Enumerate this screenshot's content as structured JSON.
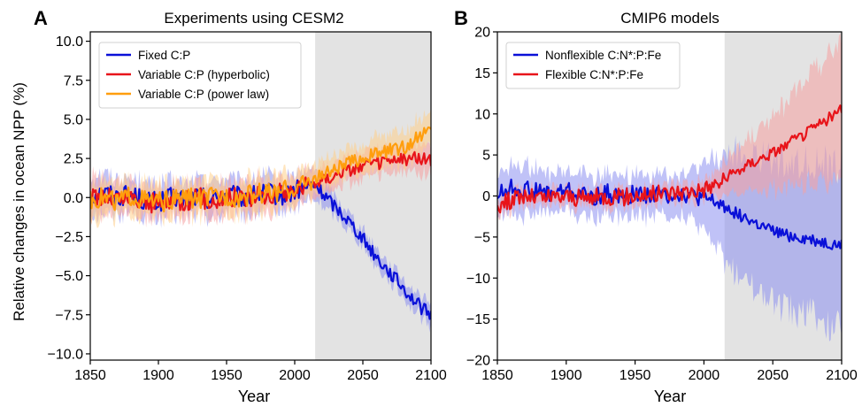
{
  "chart_data": [
    {
      "panel": "A",
      "type": "line",
      "title": "Experiments using CESM2",
      "xlabel": "Year",
      "ylabel": "Relative changes in ocean NPP (%)",
      "xlim": [
        1850,
        2100
      ],
      "ylim": [
        -10.4,
        10.6
      ],
      "xticks": [
        1850,
        1900,
        1950,
        2000,
        2050,
        2100
      ],
      "xtick_labels": [
        "1850",
        "1900",
        "1950",
        "2000",
        "2050",
        "2100"
      ],
      "yticks": [
        10.0,
        7.5,
        5.0,
        2.5,
        0.0,
        -2.5,
        -5.0,
        -7.5,
        -10.0
      ],
      "ytick_labels": [
        "10.0",
        "7.5",
        "5.0",
        "2.5",
        "0.0",
        "−2.5",
        "−5.0",
        "−7.5",
        "−10.0"
      ],
      "shaded_region": {
        "x_start": 2015,
        "x_end": 2100,
        "color": "#e3e3e3"
      },
      "legend_position": "upper-left",
      "grid": false,
      "series": [
        {
          "name": "Fixed C:P",
          "color": "#0a10d8",
          "band_color": "#8c90f0",
          "x": [
            1850,
            1860,
            1870,
            1880,
            1890,
            1900,
            1910,
            1920,
            1930,
            1940,
            1950,
            1960,
            1970,
            1980,
            1990,
            2000,
            2010,
            2015,
            2020,
            2030,
            2040,
            2050,
            2060,
            2070,
            2080,
            2090,
            2100
          ],
          "y": [
            0.2,
            0.3,
            0.1,
            0.2,
            -0.2,
            -0.3,
            0.0,
            -0.1,
            0.1,
            -0.1,
            0.2,
            0.0,
            0.1,
            0.3,
            0.1,
            0.4,
            0.7,
            0.8,
            0.3,
            -0.6,
            -1.5,
            -2.6,
            -3.8,
            -4.8,
            -5.8,
            -6.8,
            -7.6
          ],
          "band": [
            1.3,
            1.2,
            1.0,
            1.0,
            1.0,
            1.0,
            1.0,
            1.0,
            1.0,
            1.0,
            1.0,
            1.0,
            1.0,
            1.0,
            1.0,
            0.9,
            0.9,
            0.9,
            0.7,
            0.6,
            0.5,
            0.5,
            0.6,
            0.6,
            0.6,
            0.6,
            0.7
          ]
        },
        {
          "name": "Variable C:P (hyperbolic)",
          "color": "#e8141a",
          "band_color": "#f5a0a0",
          "x": [
            1850,
            1860,
            1870,
            1880,
            1890,
            1900,
            1910,
            1920,
            1930,
            1940,
            1950,
            1960,
            1970,
            1980,
            1990,
            2000,
            2010,
            2015,
            2020,
            2030,
            2040,
            2050,
            2060,
            2070,
            2080,
            2090,
            2100
          ],
          "y": [
            0.0,
            0.1,
            -0.1,
            0.0,
            -0.3,
            -0.4,
            -0.1,
            -0.2,
            0.0,
            -0.2,
            0.0,
            0.1,
            0.0,
            0.2,
            0.3,
            0.5,
            0.8,
            1.0,
            1.1,
            1.5,
            1.8,
            2.0,
            2.2,
            2.3,
            2.4,
            2.6,
            2.3
          ],
          "band": [
            1.2,
            1.1,
            1.0,
            1.0,
            1.0,
            1.0,
            1.0,
            1.0,
            1.0,
            1.0,
            1.0,
            1.0,
            1.0,
            1.0,
            1.0,
            0.9,
            0.9,
            0.9,
            0.8,
            0.8,
            0.8,
            0.8,
            0.8,
            0.8,
            0.8,
            0.9,
            0.9
          ]
        },
        {
          "name": "Variable C:P (power law)",
          "color": "#ff9e0d",
          "band_color": "#ffd08a",
          "x": [
            1850,
            1860,
            1870,
            1880,
            1890,
            1900,
            1910,
            1920,
            1930,
            1940,
            1950,
            1960,
            1970,
            1980,
            1990,
            2000,
            2010,
            2015,
            2020,
            2030,
            2040,
            2050,
            2060,
            2070,
            2080,
            2090,
            2100
          ],
          "y": [
            -0.1,
            0.0,
            -0.2,
            0.1,
            -0.2,
            -0.3,
            -0.2,
            0.0,
            -0.1,
            0.0,
            0.1,
            0.0,
            0.2,
            0.3,
            0.4,
            0.6,
            1.0,
            1.2,
            1.4,
            1.8,
            2.2,
            2.5,
            2.8,
            3.0,
            3.2,
            3.8,
            4.4
          ],
          "band": [
            1.2,
            1.1,
            1.0,
            1.0,
            1.0,
            1.0,
            1.0,
            1.0,
            1.0,
            1.0,
            1.0,
            1.0,
            1.0,
            1.0,
            1.0,
            0.9,
            0.9,
            0.9,
            0.9,
            0.9,
            0.9,
            0.9,
            1.0,
            1.0,
            1.0,
            1.1,
            1.1
          ]
        }
      ]
    },
    {
      "panel": "B",
      "type": "line",
      "title": "CMIP6 models",
      "xlabel": "Year",
      "ylabel": "",
      "xlim": [
        1850,
        2100
      ],
      "ylim": [
        -20,
        20
      ],
      "xticks": [
        1850,
        1900,
        1950,
        2000,
        2050,
        2100
      ],
      "xtick_labels": [
        "1850",
        "1900",
        "1950",
        "2000",
        "2050",
        "2100"
      ],
      "yticks": [
        20,
        15,
        10,
        5,
        0,
        -5,
        -10,
        -15,
        -20
      ],
      "ytick_labels": [
        "20",
        "15",
        "10",
        "5",
        "0",
        "−5",
        "−10",
        "−15",
        "−20"
      ],
      "shaded_region": {
        "x_start": 2015,
        "x_end": 2100,
        "color": "#e3e3e3"
      },
      "legend_position": "upper-left",
      "grid": false,
      "series": [
        {
          "name": "Nonflexible C:N*:P:Fe",
          "color": "#0a10d8",
          "band_color": "#8c90f0",
          "x": [
            1850,
            1860,
            1870,
            1880,
            1890,
            1900,
            1910,
            1920,
            1930,
            1940,
            1950,
            1960,
            1970,
            1980,
            1990,
            2000,
            2010,
            2015,
            2020,
            2030,
            2040,
            2050,
            2060,
            2070,
            2080,
            2090,
            2100
          ],
          "y": [
            0.2,
            1.0,
            0.8,
            0.5,
            0.3,
            0.7,
            0.2,
            -0.2,
            0.4,
            -0.2,
            0.3,
            0.2,
            0.1,
            0.3,
            0.1,
            -0.4,
            -0.9,
            -1.3,
            -1.8,
            -2.7,
            -3.6,
            -4.3,
            -4.8,
            -5.1,
            -5.4,
            -5.8,
            -6.0
          ],
          "band": [
            2.5,
            2.8,
            3.0,
            2.5,
            2.5,
            2.5,
            2.5,
            2.5,
            2.5,
            2.5,
            2.5,
            2.5,
            2.5,
            2.5,
            2.8,
            4.0,
            5.5,
            6.2,
            6.8,
            7.5,
            8.0,
            8.5,
            8.8,
            9.0,
            9.2,
            9.3,
            9.5
          ]
        },
        {
          "name": "Flexible C:N*:P:Fe",
          "color": "#e8141a",
          "band_color": "#f5a0a0",
          "x": [
            1850,
            1860,
            1870,
            1880,
            1890,
            1900,
            1910,
            1920,
            1930,
            1940,
            1950,
            1960,
            1970,
            1980,
            1990,
            2000,
            2010,
            2015,
            2020,
            2030,
            2040,
            2050,
            2060,
            2070,
            2080,
            2090,
            2100
          ],
          "y": [
            -1.2,
            -0.5,
            0.0,
            -0.3,
            -0.2,
            0.0,
            -0.3,
            -0.2,
            0.0,
            -0.2,
            0.1,
            0.2,
            0.3,
            0.5,
            0.6,
            0.9,
            1.5,
            2.0,
            2.6,
            3.6,
            4.5,
            5.3,
            6.2,
            7.2,
            8.3,
            9.4,
            10.5
          ],
          "band": [
            1.0,
            1.0,
            1.0,
            1.0,
            1.0,
            1.0,
            1.0,
            1.0,
            1.0,
            1.0,
            1.0,
            1.0,
            1.0,
            1.0,
            1.0,
            1.2,
            1.6,
            2.0,
            2.4,
            3.0,
            3.6,
            4.3,
            5.0,
            5.8,
            6.6,
            7.5,
            8.5
          ]
        }
      ]
    }
  ]
}
